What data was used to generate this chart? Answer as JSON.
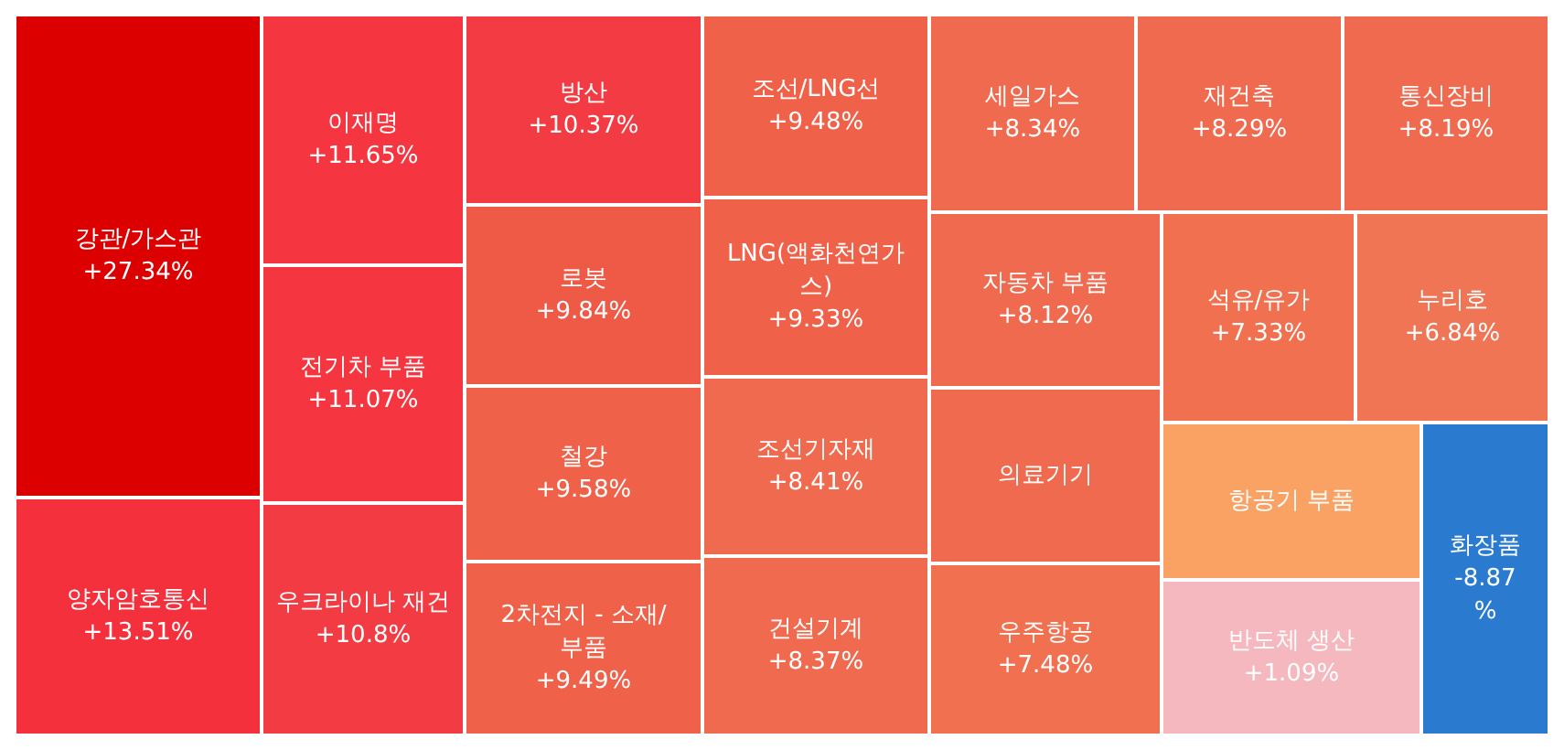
{
  "chart_data": {
    "type": "other",
    "categories": [
      "강관/가스관",
      "양자암호통신",
      "이재명",
      "전기차 부품",
      "우크라이나 재건",
      "방산",
      "로봇",
      "철강",
      "2차전지 - 소재/부품",
      "조선/LNG선",
      "LNG(액화천연가스)",
      "조선기자재",
      "건설기계",
      "세일가스",
      "재건축",
      "통신장비",
      "자동차 부품",
      "의료기기",
      "우주항공",
      "석유/유가",
      "누리호",
      "항공기 부품",
      "반도체 생산",
      "화장품"
    ],
    "values": [
      27.34,
      13.51,
      11.65,
      11.07,
      10.8,
      10.37,
      9.84,
      9.58,
      9.49,
      9.48,
      9.33,
      8.41,
      8.37,
      8.34,
      8.29,
      8.19,
      8.12,
      null,
      7.48,
      7.33,
      6.84,
      null,
      1.09,
      -8.87
    ],
    "value_labels": [
      "+27.34%",
      "+13.51%",
      "+11.65%",
      "+11.07%",
      "+10.8%",
      "+10.37%",
      "+9.84%",
      "+9.58%",
      "+9.49%",
      "+9.48%",
      "+9.33%",
      "+8.41%",
      "+8.37%",
      "+8.34%",
      "+8.29%",
      "+8.19%",
      "+8.12%",
      null,
      "+7.48%",
      "+7.33%",
      "+6.84%",
      null,
      "+1.09%",
      "-8.87%"
    ],
    "colors": [
      "#dd0000",
      "#f4303c",
      "#f5353f",
      "#f5353f",
      "#f23b42",
      "#f23b42",
      "#ef5a47",
      "#ef6149",
      "#ef6149",
      "#ef6149",
      "#ef6149",
      "#ef6a4e",
      "#ef6a4e",
      "#ef6a4e",
      "#ef6a4e",
      "#ef6a4e",
      "#ef6a4e",
      "#ef6a4e",
      "#f0704f",
      "#f0704f",
      "#f07554",
      "#f9a263",
      "#f6b8bf",
      "#2a7bcf"
    ]
  }
}
